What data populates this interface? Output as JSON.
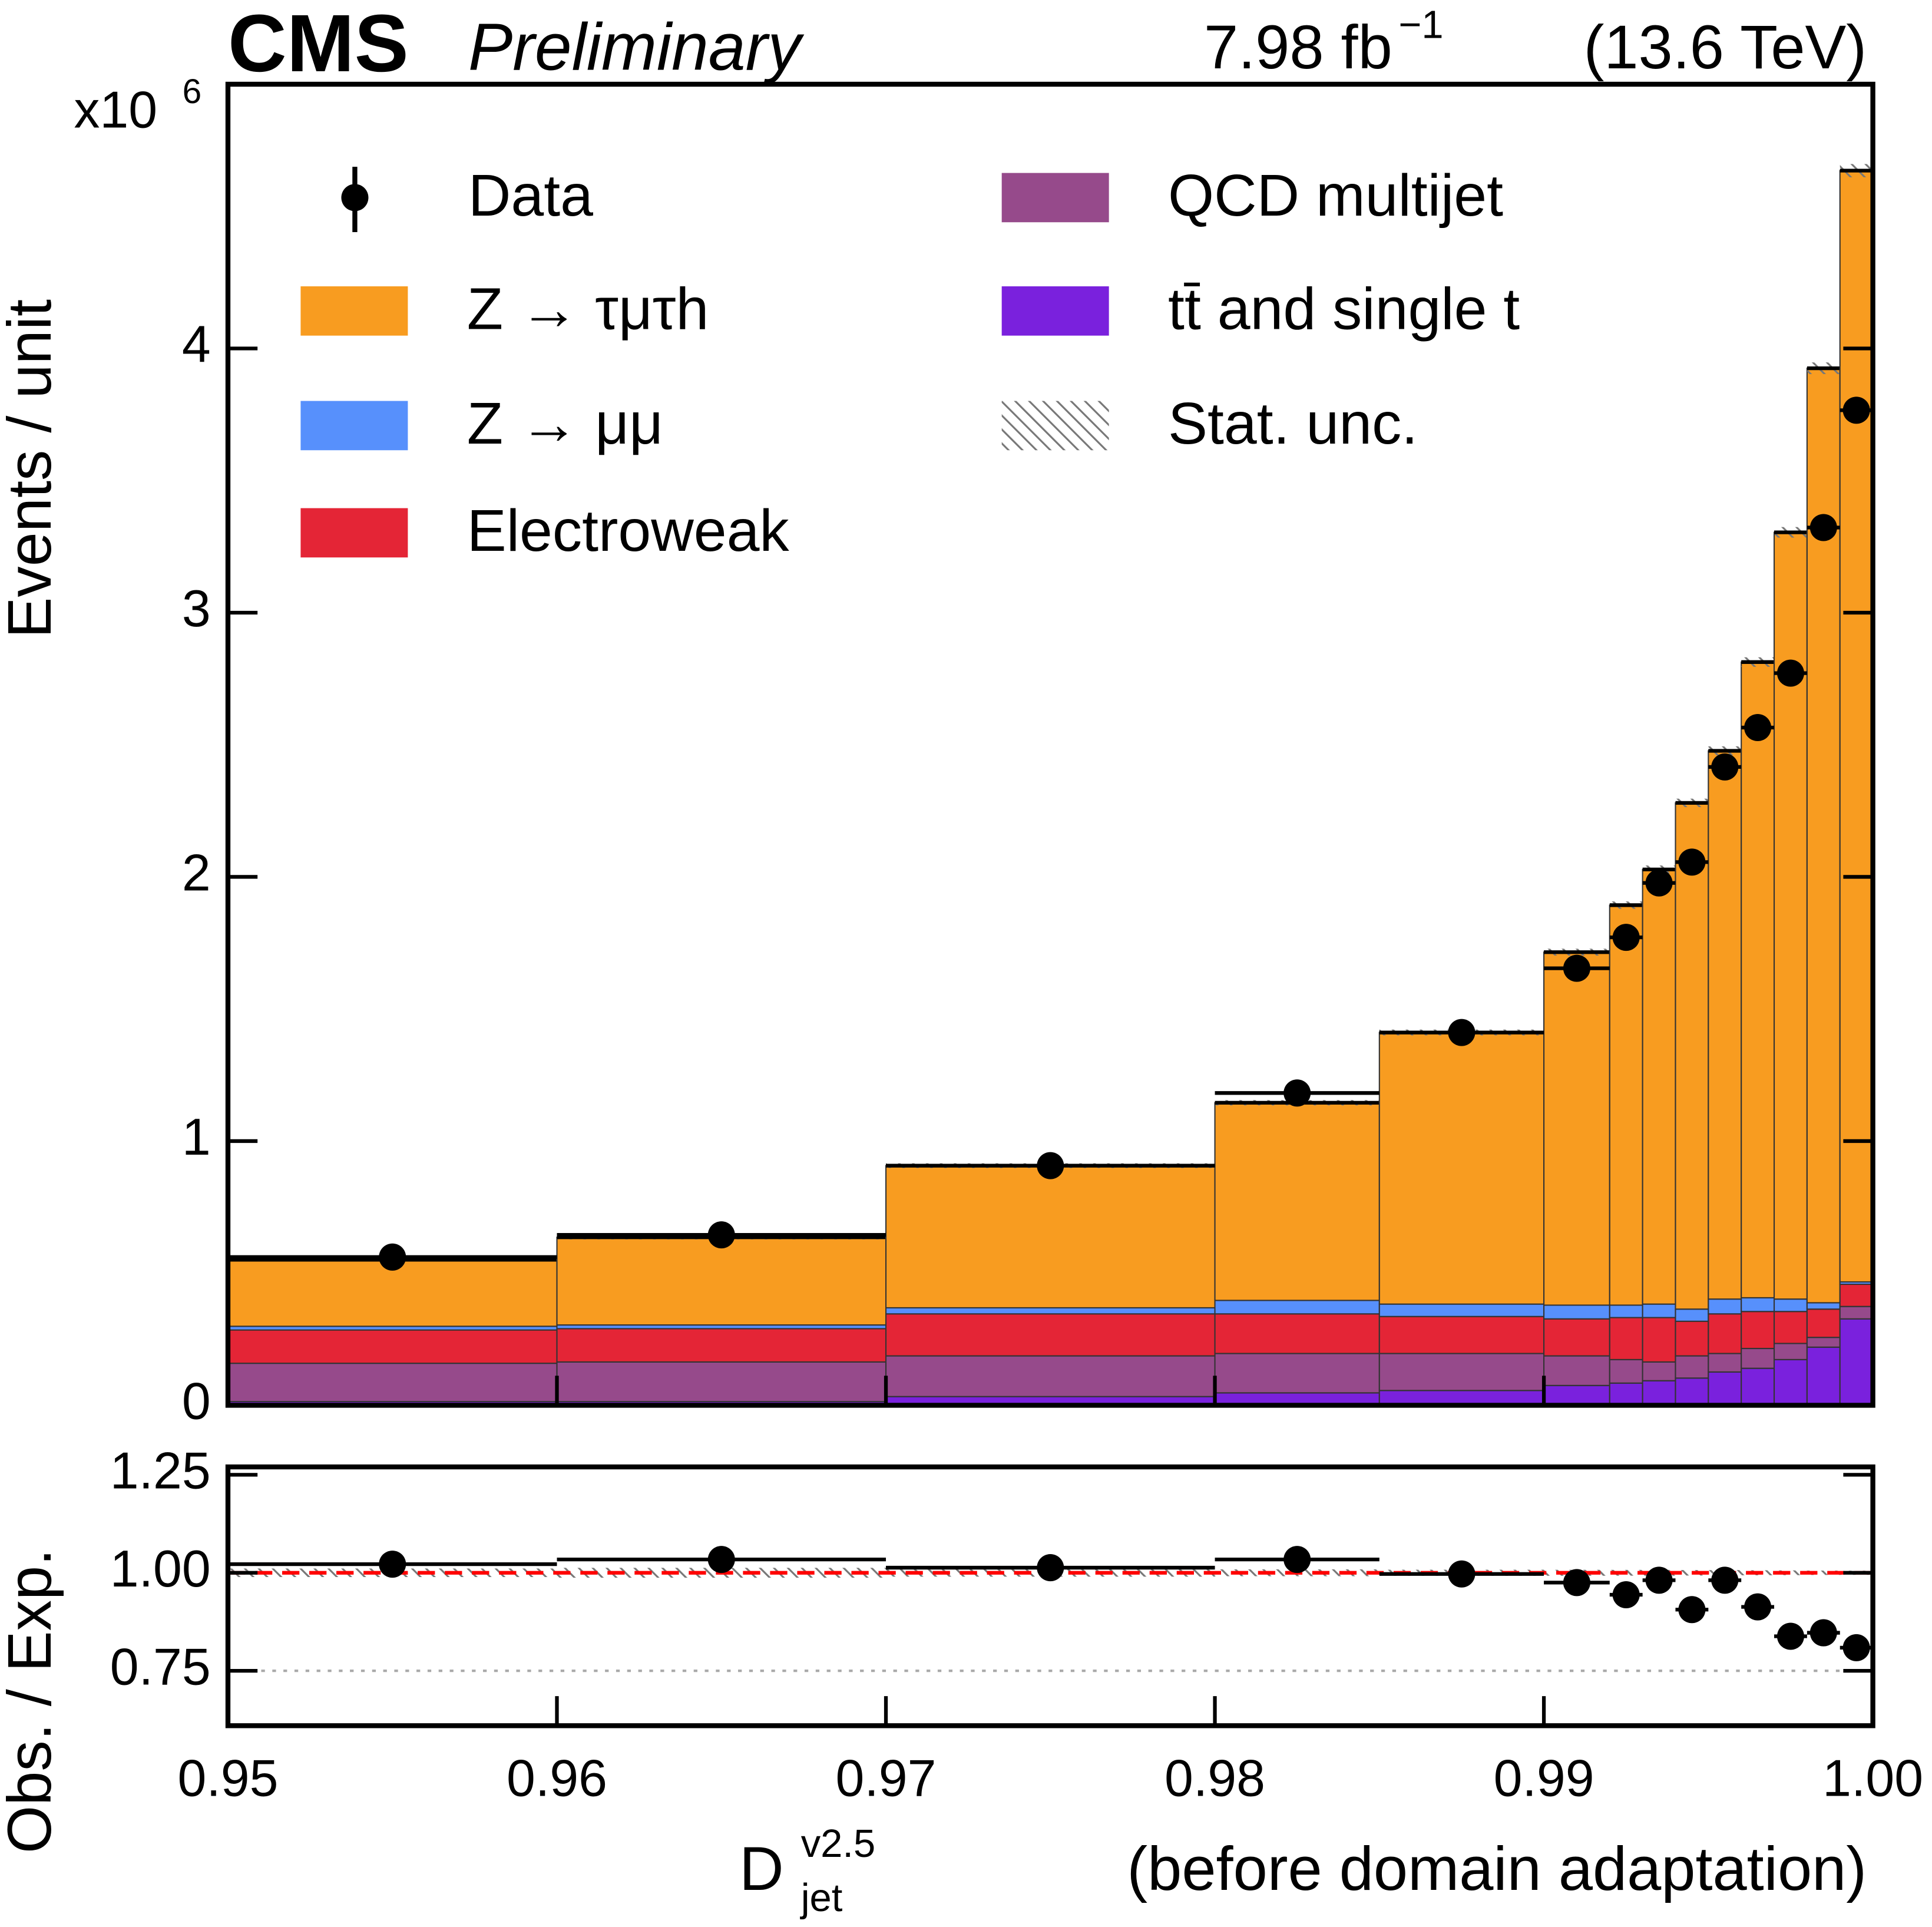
{
  "chart_data": {
    "type": "stacked_histogram",
    "experiment": "CMS",
    "status": "Preliminary",
    "lumi": {
      "text": "7.98 fb",
      "sup": "−1",
      "energy": "(13.6 TeV)"
    },
    "y_label": "Events / unit",
    "y_multiplier": {
      "base": "x10",
      "exponent": "6"
    },
    "x_label": {
      "symbol": "D",
      "sup": "v2.5",
      "sub": "jet",
      "text": "(before domain adaptation)"
    },
    "bins": [
      0.95,
      0.96,
      0.97,
      0.98,
      0.985,
      0.99,
      0.992,
      0.993,
      0.994,
      0.995,
      0.996,
      0.997,
      0.998,
      0.999,
      1.0
    ],
    "data": {
      "name": "Data",
      "color": "#000000",
      "values": [
        0.561,
        0.645,
        0.907,
        1.182,
        1.411,
        1.654,
        1.771,
        1.977,
        2.056,
        2.416,
        2.565,
        2.771,
        3.322,
        3.766
      ]
    },
    "series": [
      {
        "name": "Z → τμτh",
        "color": "#f89c20",
        "values": [
          0.252,
          0.332,
          0.538,
          0.748,
          1.028,
          1.336,
          1.514,
          1.645,
          1.916,
          2.075,
          2.406,
          2.902,
          3.537,
          4.206
        ]
      },
      {
        "name": "Z → μμ",
        "color": "#5790fc",
        "values": [
          0.014,
          0.014,
          0.023,
          0.051,
          0.047,
          0.052,
          0.047,
          0.051,
          0.046,
          0.056,
          0.052,
          0.047,
          0.024,
          0.009
        ]
      },
      {
        "name": "Electroweak",
        "color": "#e42536",
        "values": [
          0.126,
          0.126,
          0.159,
          0.15,
          0.14,
          0.14,
          0.159,
          0.168,
          0.131,
          0.15,
          0.14,
          0.121,
          0.107,
          0.084
        ]
      },
      {
        "name": "QCD multijet",
        "color": "#964a8b",
        "values": [
          0.145,
          0.15,
          0.154,
          0.149,
          0.14,
          0.112,
          0.089,
          0.071,
          0.084,
          0.07,
          0.075,
          0.061,
          0.037,
          0.047
        ]
      },
      {
        "name": "tt̄ and single t",
        "color": "#7a21dd",
        "values": [
          0.014,
          0.014,
          0.033,
          0.047,
          0.056,
          0.075,
          0.084,
          0.093,
          0.103,
          0.126,
          0.14,
          0.173,
          0.22,
          0.327
        ]
      }
    ],
    "stat_unc": {
      "name": "Stat. unc.",
      "values": [
        0.006,
        0.008,
        0.009,
        0.01,
        0.011,
        0.013,
        0.014,
        0.015,
        0.016,
        0.017,
        0.018,
        0.02,
        0.022,
        0.025
      ]
    },
    "xlim": [
      0.95,
      1.0
    ],
    "xticks": [
      0.95,
      0.96,
      0.97,
      0.98,
      0.99,
      {
        "value": 1.0,
        "label": "1.00"
      }
    ],
    "ylim": [
      0,
      5
    ],
    "yticks": [
      0,
      1,
      2,
      3,
      4
    ],
    "ratio": {
      "y_label": "Obs. / Exp.",
      "values": [
        1.022,
        1.034,
        1.013,
        1.034,
        0.997,
        0.975,
        0.944,
        0.981,
        0.906,
        0.981,
        0.913,
        0.838,
        0.847,
        0.809
      ],
      "ylim": [
        0.61,
        1.27
      ],
      "yticks": [
        {
          "value": 0.75,
          "label": "0.75"
        },
        {
          "value": 1.0,
          "label": "1.00"
        },
        {
          "value": 1.25,
          "label": "1.25"
        }
      ],
      "reference_lines": [
        {
          "value": 1.0,
          "color": "#ff0000"
        },
        {
          "value": 0.75,
          "color": "#aaaaaa"
        }
      ]
    }
  }
}
